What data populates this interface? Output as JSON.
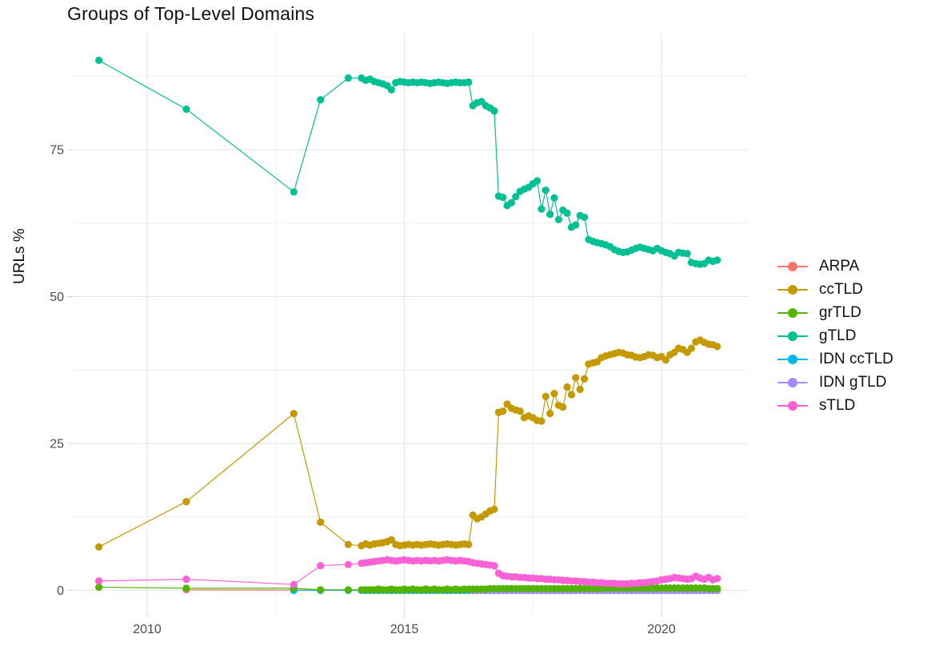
{
  "chart_data": {
    "type": "line",
    "title": "Groups of Top-Level Domains",
    "xlabel": "",
    "ylabel": "URLs %",
    "x_ticks": [
      2010,
      2015,
      2020
    ],
    "x_minor_gridlines": [
      2012.5,
      2017.5
    ],
    "y_ticks": [
      0,
      25,
      50,
      75
    ],
    "y_minor_gridlines": [
      12.5,
      37.5,
      62.5,
      87.5
    ],
    "xlim": [
      2008.6,
      2021.7
    ],
    "ylim": [
      -4,
      94.5
    ],
    "grid": "on",
    "legend_position": "right",
    "monthly_x": {
      "start": 2014.1667,
      "step": 0.083333
    },
    "series": [
      {
        "name": "ARPA",
        "color": "#F8766D",
        "early": [
          [
            2010.76,
            0.1
          ],
          [
            2012.85,
            0.05
          ],
          [
            2013.37,
            0.05
          ],
          [
            2013.91,
            0.05
          ]
        ],
        "monthly_start_index": 0,
        "monthly_const": {
          "count": 84,
          "value": 0.0
        }
      },
      {
        "name": "ccTLD",
        "color": "#C49A00",
        "early": [
          [
            2009.06,
            7.4
          ],
          [
            2010.76,
            15.1
          ],
          [
            2012.85,
            30.1
          ],
          [
            2013.37,
            11.6
          ],
          [
            2013.91,
            7.8
          ]
        ],
        "monthly_start_index": 0,
        "monthly": [
          7.6,
          7.9,
          7.7,
          7.9,
          8.0,
          8.1,
          8.3,
          8.6,
          7.8,
          7.6,
          7.7,
          7.8,
          7.7,
          7.8,
          7.7,
          7.8,
          7.9,
          7.8,
          7.7,
          7.8,
          7.9,
          7.8,
          7.7,
          7.8,
          7.9,
          7.8,
          12.8,
          12.2,
          12.5,
          13.0,
          13.5,
          13.8,
          30.3,
          30.5,
          31.7,
          31.0,
          30.7,
          30.5,
          29.4,
          29.7,
          29.4,
          28.9,
          28.8,
          33.0,
          30.1,
          33.5,
          31.5,
          31.2,
          34.6,
          33.3,
          36.2,
          34.2,
          36.0,
          38.5,
          38.7,
          38.9,
          39.6,
          39.9,
          40.1,
          40.3,
          40.5,
          40.4,
          40.1,
          40.0,
          39.7,
          39.6,
          39.8,
          40.1,
          40.0,
          39.6,
          39.8,
          39.2,
          40.1,
          40.5,
          41.2,
          41.0,
          40.5,
          41.2,
          42.3,
          42.6,
          42.2,
          41.9,
          41.8,
          41.5
        ]
      },
      {
        "name": "grTLD",
        "color": "#53B400",
        "early": [
          [
            2009.06,
            0.55
          ],
          [
            2010.76,
            0.35
          ],
          [
            2012.85,
            0.35
          ],
          [
            2013.37,
            0.1
          ],
          [
            2013.91,
            0.1
          ]
        ],
        "monthly_start_index": 0,
        "monthly": [
          0.1,
          0.1,
          0.1,
          0.1,
          0.2,
          0.1,
          0.1,
          0.2,
          0.1,
          0.1,
          0.2,
          0.1,
          0.2,
          0.1,
          0.1,
          0.2,
          0.1,
          0.2,
          0.1,
          0.1,
          0.2,
          0.1,
          0.2,
          0.1,
          0.2,
          0.2,
          0.2,
          0.2,
          0.2,
          0.2,
          0.3,
          0.3,
          0.3,
          0.3,
          0.3,
          0.3,
          0.3,
          0.3,
          0.3,
          0.3,
          0.3,
          0.3,
          0.3,
          0.3,
          0.3,
          0.3,
          0.3,
          0.3,
          0.3,
          0.3,
          0.3,
          0.3,
          0.3,
          0.3,
          0.3,
          0.3,
          0.3,
          0.4,
          0.4,
          0.4,
          0.4,
          0.4,
          0.4,
          0.4,
          0.4,
          0.4,
          0.4,
          0.4,
          0.4,
          0.4,
          0.4,
          0.4,
          0.4,
          0.4,
          0.4,
          0.4,
          0.4,
          0.4,
          0.4,
          0.4,
          0.4,
          0.3,
          0.3,
          0.3
        ]
      },
      {
        "name": "gTLD",
        "color": "#00C094",
        "early": [
          [
            2009.06,
            90.2
          ],
          [
            2010.76,
            81.9
          ],
          [
            2012.85,
            67.8
          ],
          [
            2013.37,
            83.5
          ],
          [
            2013.91,
            87.2
          ]
        ],
        "monthly_start_index": 0,
        "monthly": [
          87.2,
          86.8,
          87.0,
          86.6,
          86.4,
          86.2,
          85.9,
          85.2,
          86.4,
          86.6,
          86.5,
          86.4,
          86.5,
          86.4,
          86.5,
          86.4,
          86.3,
          86.4,
          86.5,
          86.4,
          86.3,
          86.4,
          86.5,
          86.4,
          86.4,
          86.5,
          82.5,
          83.0,
          83.2,
          82.5,
          82.1,
          81.6,
          67.1,
          66.9,
          65.5,
          66.0,
          67.0,
          67.9,
          68.3,
          68.6,
          69.2,
          69.7,
          64.9,
          68.1,
          64.0,
          66.8,
          63.1,
          64.7,
          64.2,
          61.8,
          62.2,
          63.8,
          63.5,
          59.7,
          59.4,
          59.2,
          59.0,
          58.8,
          58.5,
          58.0,
          57.7,
          57.5,
          57.6,
          57.9,
          58.2,
          58.4,
          58.2,
          58.0,
          57.8,
          58.2,
          57.8,
          57.5,
          57.3,
          56.9,
          57.5,
          57.4,
          57.3,
          55.8,
          55.6,
          55.5,
          55.6,
          56.2,
          56.0,
          56.2
        ]
      },
      {
        "name": "IDN ccTLD",
        "color": "#00B6EB",
        "early": [
          [
            2012.85,
            0.0
          ],
          [
            2013.37,
            0.0
          ],
          [
            2013.91,
            0.0
          ]
        ],
        "monthly_start_index": 0,
        "monthly_const": {
          "count": 84,
          "value": 0.0
        }
      },
      {
        "name": "IDN gTLD",
        "color": "#A58AFF",
        "early": [],
        "monthly_start_index": 26,
        "monthly_const": {
          "count": 58,
          "value": 0.0
        }
      },
      {
        "name": "sTLD",
        "color": "#FB61D7",
        "early": [
          [
            2009.06,
            1.6
          ],
          [
            2010.76,
            1.9
          ],
          [
            2012.85,
            1.0
          ],
          [
            2013.37,
            4.2
          ],
          [
            2013.91,
            4.4
          ]
        ],
        "monthly_start_index": 0,
        "monthly": [
          4.6,
          4.7,
          4.8,
          4.9,
          5.0,
          5.1,
          5.2,
          5.1,
          5.0,
          5.1,
          5.2,
          5.1,
          5.0,
          5.1,
          5.0,
          5.1,
          5.0,
          5.1,
          5.0,
          5.1,
          5.2,
          5.1,
          5.0,
          5.1,
          5.0,
          4.9,
          4.7,
          4.6,
          4.5,
          4.4,
          4.3,
          4.2,
          2.9,
          2.5,
          2.4,
          2.3,
          2.3,
          2.2,
          2.2,
          2.1,
          2.1,
          2.0,
          2.0,
          1.9,
          1.9,
          1.8,
          1.8,
          1.7,
          1.7,
          1.6,
          1.6,
          1.5,
          1.5,
          1.4,
          1.4,
          1.3,
          1.3,
          1.2,
          1.2,
          1.2,
          1.1,
          1.1,
          1.1,
          1.2,
          1.2,
          1.3,
          1.3,
          1.4,
          1.5,
          1.6,
          1.8,
          1.9,
          2.0,
          2.2,
          2.1,
          2.0,
          1.9,
          2.0,
          2.4,
          2.1,
          1.9,
          2.2,
          1.8,
          2.0
        ]
      }
    ]
  }
}
